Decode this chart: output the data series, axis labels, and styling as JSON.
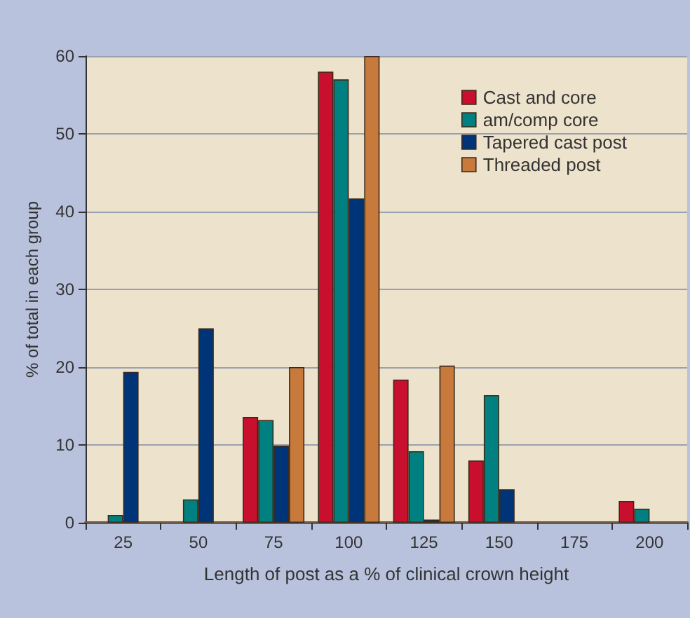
{
  "chart_data": {
    "type": "bar",
    "xlabel": "Length of post as a % of clinical crown height",
    "ylabel": "% of total in each group",
    "categories": [
      "25",
      "50",
      "75",
      "100",
      "125",
      "150",
      "175",
      "200"
    ],
    "series": [
      {
        "name": "Cast and core",
        "color": "#c8102e",
        "values": [
          0,
          0,
          13.6,
          58,
          18.4,
          8,
          0,
          2.8
        ]
      },
      {
        "name": "am/comp core",
        "color": "#008080",
        "values": [
          1,
          3,
          13.2,
          57,
          9.2,
          16.4,
          0,
          1.8
        ]
      },
      {
        "name": "Tapered cast post",
        "color": "#003478",
        "values": [
          19.4,
          25,
          9.9,
          41.7,
          0.4,
          4.3,
          0,
          0
        ]
      },
      {
        "name": "Threaded post",
        "color": "#c87a3c",
        "values": [
          0,
          0,
          20,
          60,
          20.2,
          0,
          0,
          0
        ]
      }
    ],
    "ylim": [
      0,
      60
    ],
    "yticks": [
      0,
      10,
      20,
      30,
      40,
      50,
      60
    ],
    "grid": "y",
    "legend": "top right"
  }
}
